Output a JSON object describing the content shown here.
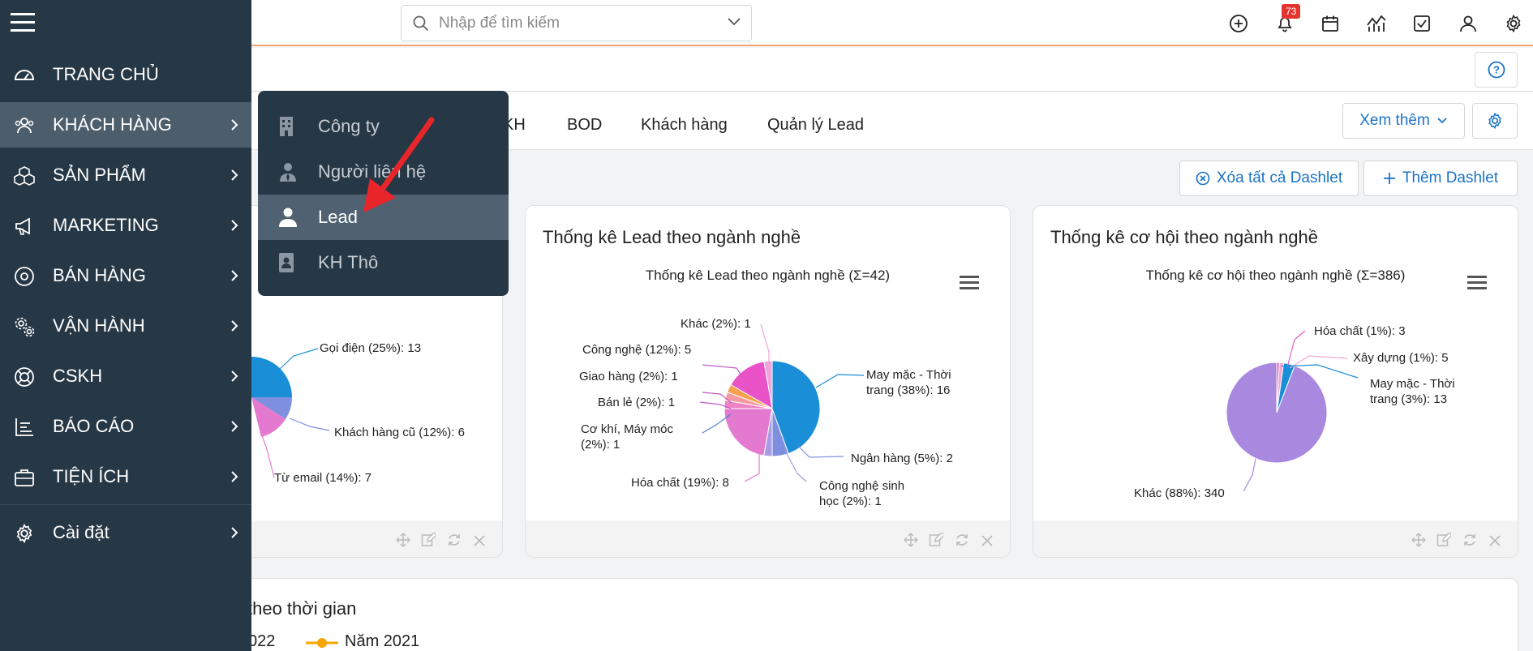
{
  "header": {
    "search_placeholder": "Nhập để tìm kiếm",
    "notification_count": "73"
  },
  "tabs": [
    "KH",
    "BOD",
    "Khách hàng",
    "Quản lý Lead"
  ],
  "buttons": {
    "more": "Xem thêm",
    "clear_dashlets": "Xóa tất cả Dashlet",
    "add_dashlet": "Thêm Dashlet"
  },
  "sidebar": {
    "items": [
      {
        "label": "TRANG CHỦ",
        "icon": "dashboard-icon"
      },
      {
        "label": "KHÁCH HÀNG",
        "icon": "users-icon"
      },
      {
        "label": "SẢN PHẨM",
        "icon": "boxes-icon"
      },
      {
        "label": "MARKETING",
        "icon": "megaphone-icon"
      },
      {
        "label": "BÁN HÀNG",
        "icon": "target-icon"
      },
      {
        "label": "VẬN HÀNH",
        "icon": "gears-icon"
      },
      {
        "label": "CSKH",
        "icon": "lifebuoy-icon"
      },
      {
        "label": "BÁO CÁO",
        "icon": "report-icon"
      },
      {
        "label": "TIỆN ÍCH",
        "icon": "briefcase-icon"
      },
      {
        "label": "Cài đặt",
        "icon": "gear-icon"
      }
    ]
  },
  "submenu": {
    "items": [
      {
        "label": "Công ty",
        "icon": "building-icon"
      },
      {
        "label": "Người liên hệ",
        "icon": "contact-person-icon"
      },
      {
        "label": "Lead",
        "icon": "person-icon"
      },
      {
        "label": "KH Thô",
        "icon": "id-card-icon"
      }
    ]
  },
  "cards": {
    "left": {
      "labels": [
        "Gọi điện (25%): 13",
        "Khách hàng cũ (12%): 6",
        "Từ email (14%): 7"
      ]
    },
    "lead": {
      "title": "Thống kê Lead theo ngành nghề",
      "chart_title": "Thống kê Lead theo ngành nghề (Σ=42)"
    },
    "opportunity": {
      "title": "Thống kê cơ hội theo ngành nghề",
      "chart_title": "Thống kê cơ hội theo ngành nghề (Σ=386)"
    },
    "bottom": {
      "title_fragment": "theo thời gian",
      "legend": [
        "022",
        "Năm 2021"
      ]
    }
  },
  "chart_data": [
    {
      "type": "pie",
      "title": "Thống kê Lead theo ngành nghề (Σ=42)",
      "slices": [
        {
          "name": "May mặc - Thời trang",
          "value": 16,
          "pct": 38,
          "color": "#1a8ed6"
        },
        {
          "name": "Ngân hàng",
          "value": 2,
          "pct": 5,
          "color": "#7f8fe0"
        },
        {
          "name": "Công nghệ sinh học",
          "value": 1,
          "pct": 2,
          "color": "#a99be6"
        },
        {
          "name": "Hóa chất",
          "value": 8,
          "pct": 19,
          "color": "#e37ad0"
        },
        {
          "name": "Cơ khí, Máy móc",
          "value": 1,
          "pct": 2,
          "color": "#ee84c4"
        },
        {
          "name": "Bán lẻ",
          "value": 1,
          "pct": 2,
          "color": "#f59aa0"
        },
        {
          "name": "Giao hàng",
          "value": 1,
          "pct": 2,
          "color": "#f7a14e"
        },
        {
          "name": "Công nghệ",
          "value": 5,
          "pct": 12,
          "color": "#ea52c8"
        },
        {
          "name": "Khác",
          "value": 1,
          "pct": 2,
          "color": "#f2a3d8"
        }
      ],
      "labels": [
        "May mặc - Thời",
        "trang (38%): 16",
        "Ngân hàng (5%): 2",
        "Công nghệ sinh",
        "học (2%): 1",
        "Hóa chất (19%): 8",
        "Cơ khí, Máy móc",
        "(2%): 1",
        "Bán lẻ (2%): 1",
        "Giao hàng (2%): 1",
        "Công nghệ (12%): 5",
        "Khác (2%): 1"
      ]
    },
    {
      "type": "pie",
      "title": "Thống kê cơ hội theo ngành nghề (Σ=386)",
      "slices": [
        {
          "name": "Hóa chất",
          "value": 3,
          "pct": 1,
          "color": "#e55fc0"
        },
        {
          "name": "Xây dựng",
          "value": 5,
          "pct": 1,
          "color": "#f3a6cf"
        },
        {
          "name": "May mặc - Thời trang",
          "value": 13,
          "pct": 3,
          "color": "#1a8ed6"
        },
        {
          "name": "Khác",
          "value": 340,
          "pct": 88,
          "color": "#a988e0"
        }
      ],
      "labels": [
        "Hóa chất (1%): 3",
        "Xây dựng (1%): 5",
        "May mặc - Thời",
        "trang (3%): 13",
        "Khác (88%): 340"
      ]
    }
  ]
}
